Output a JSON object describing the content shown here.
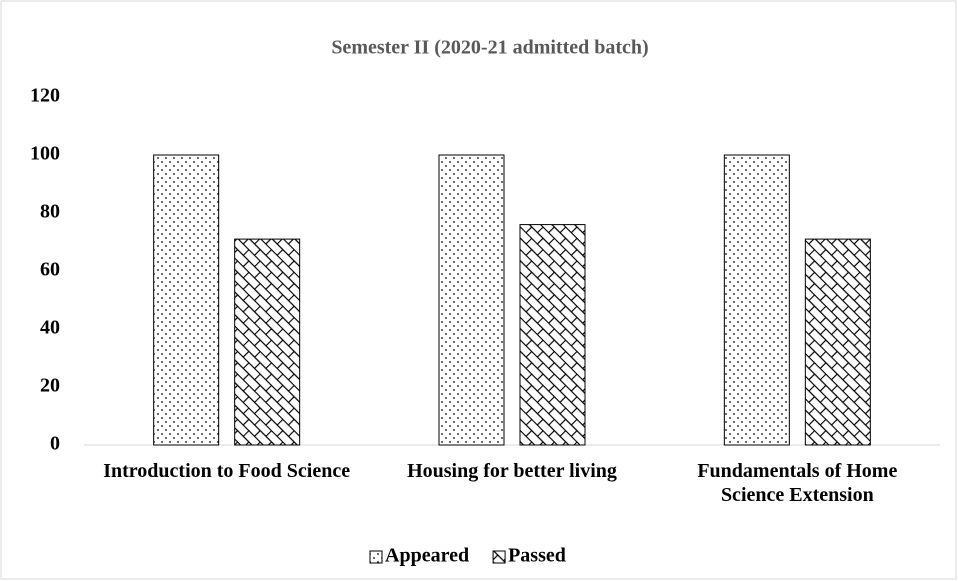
{
  "chart_data": {
    "type": "bar",
    "title": "Semester II (2020-21 admitted batch)",
    "categories": [
      "Introduction to Food Science",
      "Housing for better living",
      "Fundamentals of Home Science Extension"
    ],
    "series": [
      {
        "name": "Appeared",
        "color": "#000000",
        "pattern": "dots",
        "values": [
          100,
          100,
          100
        ]
      },
      {
        "name": "Passed",
        "color": "#000000",
        "pattern": "brick",
        "values": [
          71,
          76,
          71
        ]
      }
    ],
    "ylim": [
      0,
      120
    ],
    "yticks": [
      0,
      20,
      40,
      60,
      80,
      100,
      120
    ],
    "grid": false,
    "legend": "bottom"
  }
}
